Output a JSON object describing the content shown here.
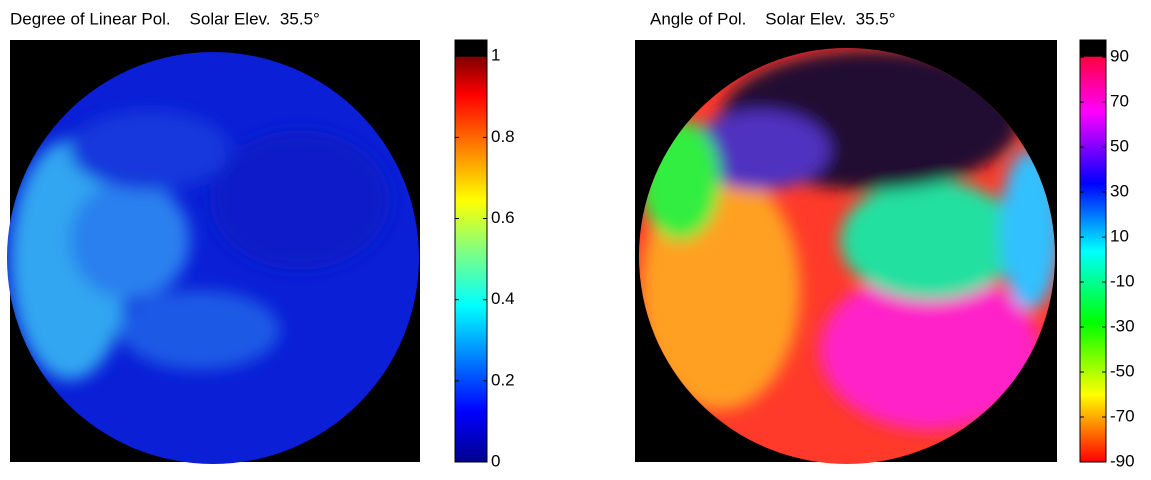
{
  "chart_data": [
    {
      "type": "image",
      "title": "Degree of Linear Pol.    Solar Elev.  35.5°",
      "colormap": "jet",
      "ylim": [
        0,
        1.04
      ],
      "yticks": [
        0,
        0.2,
        0.4,
        0.6,
        0.8,
        1
      ]
    },
    {
      "type": "image",
      "title": "Angle of Pol.    Solar Elev.  35.5°",
      "colormap": "hsv",
      "ylim": [
        -90,
        97.6
      ],
      "yticks": [
        -90,
        -70,
        -50,
        -30,
        -10,
        10,
        30,
        50,
        70,
        90
      ]
    }
  ]
}
